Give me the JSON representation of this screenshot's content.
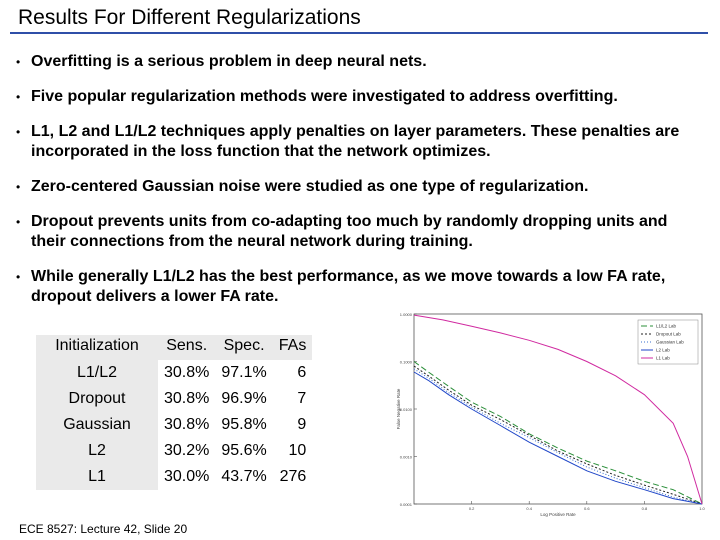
{
  "slide": {
    "title": "Results For Different Regularizations",
    "bullets": [
      "Overfitting is a serious problem in deep neural nets.",
      "Five popular regularization methods were investigated to address overfitting.",
      "L1, L2 and L1/L2 techniques apply penalties on layer parameters. These penalties are incorporated in the loss function that the network optimizes.",
      "Zero-centered Gaussian noise were studied as one type of regularization.",
      "Dropout prevents units from co-adapting too much by randomly dropping units and their connections from the neural network during training.",
      "While generally L1/L2 has the best performance, as we move towards a low FA rate, dropout delivers a lower FA rate."
    ],
    "footer": "ECE 8527: Lecture 42, Slide 20"
  },
  "table": {
    "headers": [
      "Initialization",
      "Sens.",
      "Spec.",
      "FAs"
    ],
    "rows": [
      [
        "L1/L2",
        "30.8%",
        "97.1%",
        "6"
      ],
      [
        "Dropout",
        "30.8%",
        "96.9%",
        "7"
      ],
      [
        "Gaussian",
        "30.8%",
        "95.8%",
        "9"
      ],
      [
        "L2",
        "30.2%",
        "95.6%",
        "10"
      ],
      [
        "L1",
        "30.0%",
        "43.7%",
        "276"
      ]
    ]
  },
  "chart_data": {
    "type": "line",
    "title": "",
    "xlabel": "Log Positive Rate",
    "ylabel": "False Negative Rate",
    "yscale": "log",
    "ylim": [
      0.0001,
      1
    ],
    "xlim": [
      0,
      1
    ],
    "yticks": [
      "1.0000",
      "0.1000",
      "0.0100",
      "0.0010",
      "0.0001"
    ],
    "xticks": [
      "0.2",
      "0.4",
      "0.6",
      "0.8",
      "1.0"
    ],
    "legend": "top-right",
    "series": [
      {
        "name": "L1/L2 Lab",
        "color": "#2b8f3a",
        "dash": "6,3",
        "x": [
          0.0,
          0.05,
          0.12,
          0.2,
          0.3,
          0.4,
          0.5,
          0.6,
          0.7,
          0.8,
          0.9,
          1.0
        ],
        "y": [
          0.1,
          0.06,
          0.03,
          0.014,
          0.007,
          0.003,
          0.0015,
          0.0008,
          0.0005,
          0.0003,
          0.0002,
          0.0001
        ]
      },
      {
        "name": "Dropout Lab",
        "color": "#222222",
        "dash": "2,2",
        "x": [
          0.0,
          0.05,
          0.12,
          0.2,
          0.3,
          0.4,
          0.5,
          0.6,
          0.7,
          0.8,
          0.9,
          1.0
        ],
        "y": [
          0.08,
          0.05,
          0.025,
          0.012,
          0.006,
          0.0028,
          0.0013,
          0.0007,
          0.0004,
          0.00025,
          0.00016,
          0.0001
        ]
      },
      {
        "name": "Gaussian Lab",
        "color": "#3a6fcf",
        "dash": "1,2",
        "x": [
          0.0,
          0.05,
          0.12,
          0.2,
          0.3,
          0.4,
          0.5,
          0.6,
          0.7,
          0.8,
          0.9,
          1.0
        ],
        "y": [
          0.07,
          0.045,
          0.022,
          0.011,
          0.005,
          0.0025,
          0.0012,
          0.0006,
          0.00035,
          0.00022,
          0.00014,
          0.0001
        ]
      },
      {
        "name": "L2 Lab",
        "color": "#1f46c8",
        "dash": "",
        "x": [
          0.0,
          0.05,
          0.12,
          0.2,
          0.3,
          0.4,
          0.5,
          0.6,
          0.7,
          0.8,
          0.9,
          1.0
        ],
        "y": [
          0.06,
          0.04,
          0.02,
          0.01,
          0.0045,
          0.002,
          0.001,
          0.0005,
          0.0003,
          0.0002,
          0.00013,
          0.0001
        ]
      },
      {
        "name": "L1 Lab",
        "color": "#d02aa0",
        "dash": "",
        "x": [
          0.0,
          0.1,
          0.2,
          0.3,
          0.4,
          0.5,
          0.6,
          0.7,
          0.8,
          0.9,
          0.95,
          1.0
        ],
        "y": [
          0.95,
          0.75,
          0.55,
          0.4,
          0.28,
          0.18,
          0.1,
          0.05,
          0.02,
          0.005,
          0.001,
          0.0001
        ]
      }
    ]
  }
}
